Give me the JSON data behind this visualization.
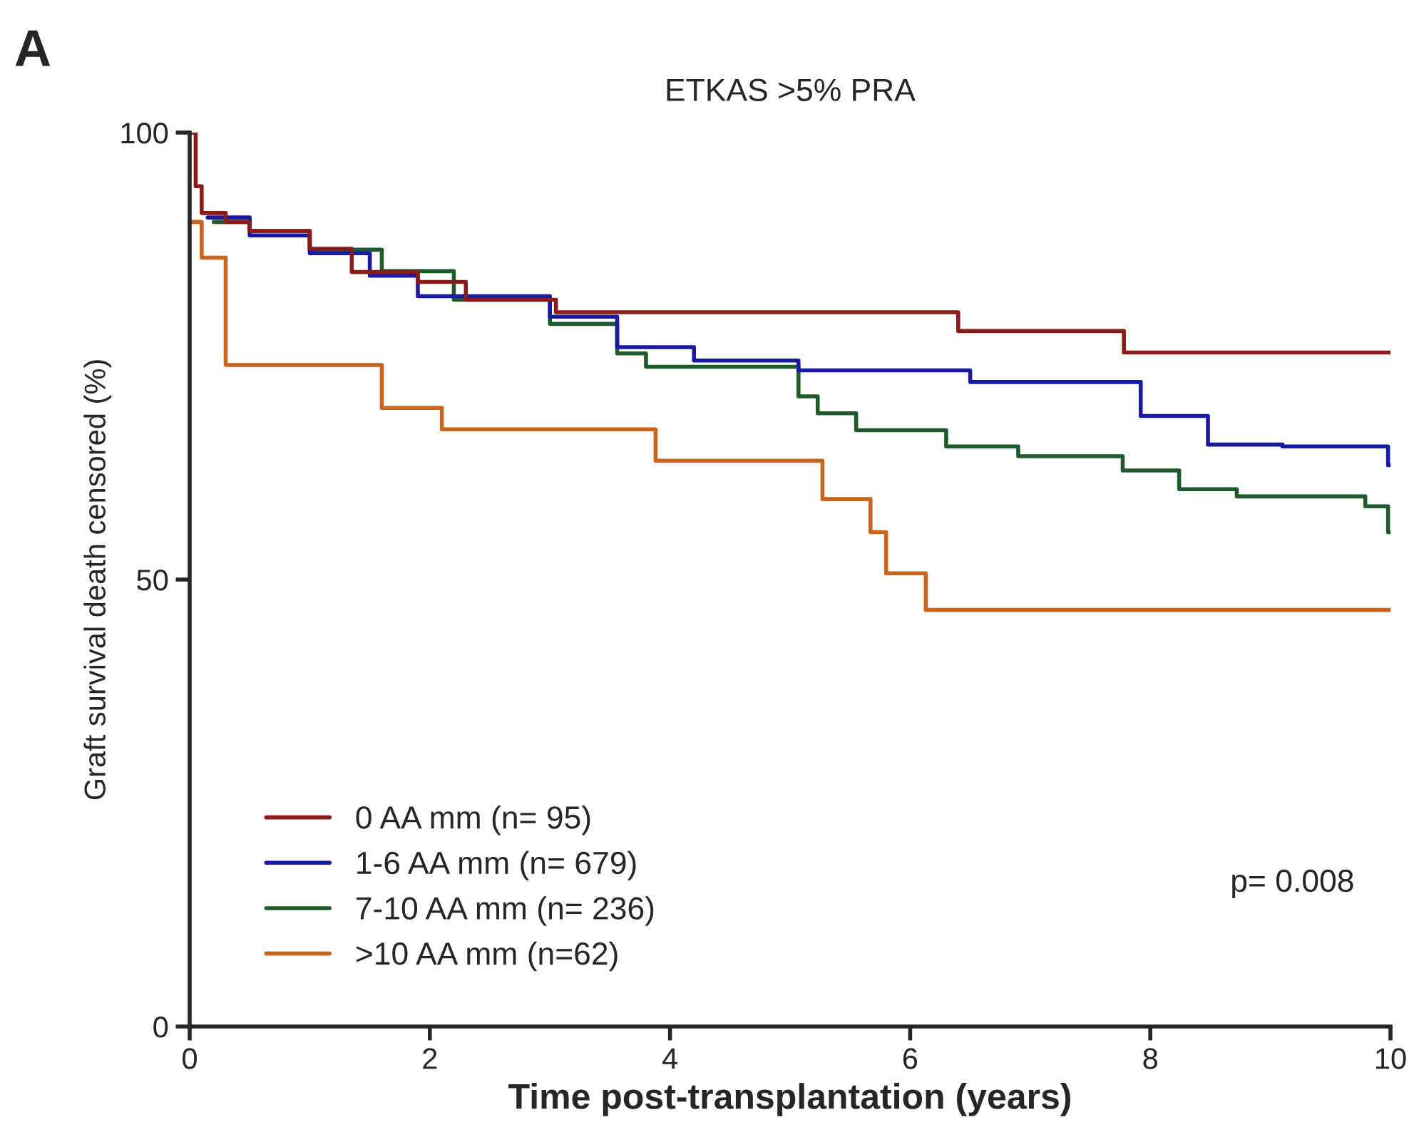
{
  "chart_data": {
    "type": "step",
    "title": "ETKAS >5% PRA",
    "xlabel": "Time post-transplantation (years)",
    "ylabel": "Graft survival death censored (%)",
    "xlim": [
      0,
      10
    ],
    "ylim": [
      0,
      100
    ],
    "xticks": [
      0,
      2,
      4,
      6,
      8,
      10
    ],
    "yticks": [
      0,
      50,
      100
    ],
    "grid": false,
    "legend": "bottom left",
    "annotations": [
      "A",
      "p= 0.008"
    ],
    "series": [
      {
        "name": "0 AA mm (n= 95)",
        "color": "#8b1a1a",
        "x": [
          0,
          0.05,
          0.1,
          0.3,
          0.5,
          1.0,
          1.35,
          1.9,
          2.3,
          3.05,
          6.4,
          7.78,
          10
        ],
        "values": [
          100,
          94,
          91,
          90,
          89,
          87,
          84.4,
          83.3,
          81.3,
          79.9,
          77.8,
          75.4,
          75.4
        ]
      },
      {
        "name": "1-6 AA mm (n= 679)",
        "color": "#1a1aa0",
        "x": [
          0.15,
          0.5,
          1.0,
          1.5,
          1.9,
          3.0,
          3.56,
          4.2,
          5.07,
          6.5,
          7.92,
          8.48,
          9.1,
          9.98,
          10
        ],
        "values": [
          90.5,
          88.5,
          86.5,
          84,
          81.7,
          79.4,
          76,
          74.5,
          73.4,
          72.1,
          68.3,
          65.1,
          64.9,
          62.8,
          62.8
        ]
      },
      {
        "name": "7-10 AA mm (n= 236)",
        "color": "#1f5a2a",
        "x": [
          0.2,
          0.5,
          1.0,
          1.6,
          2.2,
          3.0,
          3.56,
          3.8,
          5.07,
          5.23,
          5.55,
          6.3,
          6.9,
          7.77,
          8.24,
          8.72,
          9.79,
          9.98,
          10
        ],
        "values": [
          90,
          89,
          86.9,
          84.5,
          81.3,
          78.6,
          75.3,
          73.8,
          70.5,
          68.6,
          66.7,
          64.9,
          63.8,
          62.2,
          60.1,
          59.3,
          58.2,
          55.3,
          55.3
        ]
      },
      {
        "name": ">10 AA mm (n=62)",
        "color": "#c8641e",
        "x": [
          0,
          0.1,
          0.3,
          1.6,
          2.1,
          3.88,
          5.27,
          5.67,
          5.8,
          6.13,
          10
        ],
        "values": [
          90,
          86,
          74,
          69.2,
          66.8,
          63.3,
          59.0,
          55.3,
          50.7,
          46.6,
          46.6
        ]
      }
    ]
  }
}
